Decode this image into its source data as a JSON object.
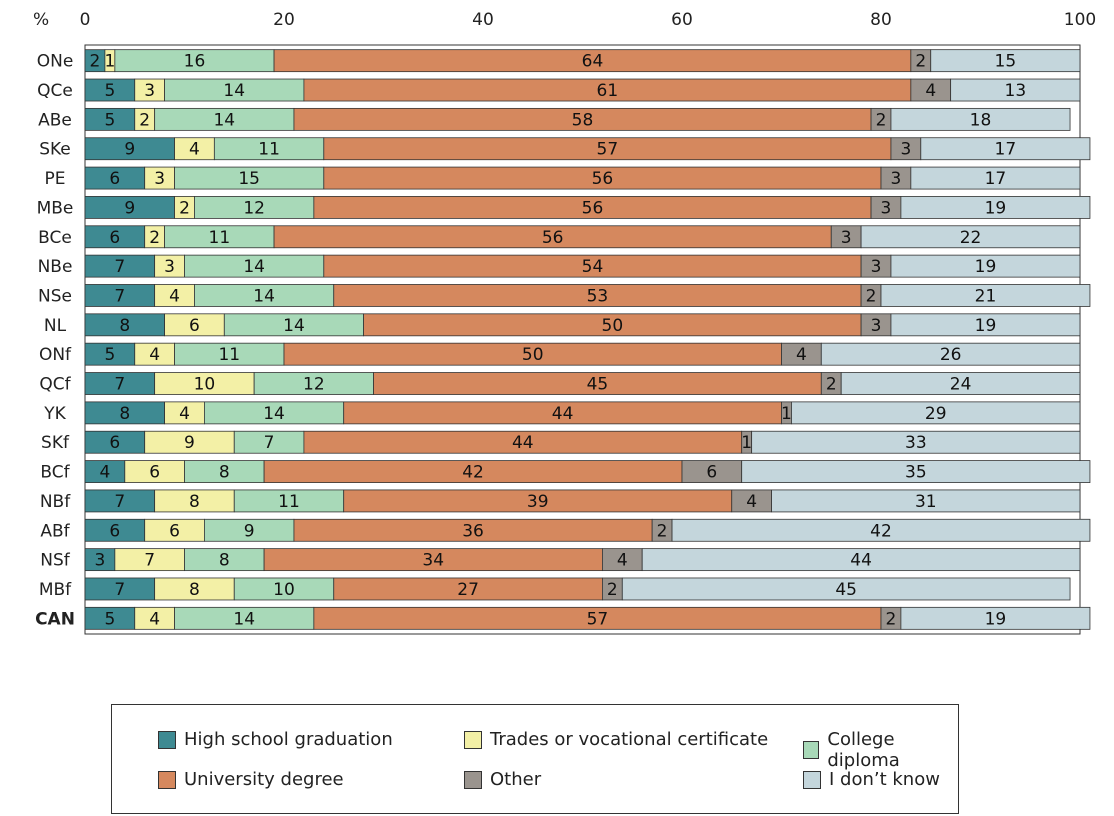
{
  "chart_data": {
    "type": "bar",
    "orientation": "horizontal",
    "stacked": true,
    "axis_unit_label": "%",
    "xlim": [
      0,
      100
    ],
    "xticks": [
      0,
      20,
      40,
      60,
      80,
      100
    ],
    "grid": false,
    "legend_placement": "bottom",
    "categories": [
      "ONe",
      "QCe",
      "ABe",
      "SKe",
      "PE",
      "MBe",
      "BCe",
      "NBe",
      "NSe",
      "NL",
      "ONf",
      "QCf",
      "YK",
      "SKf",
      "BCf",
      "NBf",
      "ABf",
      "NSf",
      "MBf",
      "CAN"
    ],
    "bold_categories": [
      "CAN"
    ],
    "series": [
      {
        "name": "High school graduation",
        "color": "#3e8a92",
        "values": [
          2,
          5,
          5,
          9,
          6,
          9,
          6,
          7,
          7,
          8,
          5,
          7,
          8,
          6,
          4,
          7,
          6,
          3,
          7,
          5
        ]
      },
      {
        "name": "Trades or vocational certificate",
        "color": "#f3f0a6",
        "values": [
          1,
          3,
          2,
          4,
          3,
          2,
          2,
          3,
          4,
          6,
          4,
          10,
          4,
          9,
          6,
          8,
          6,
          7,
          8,
          4
        ]
      },
      {
        "name": "College diploma",
        "color": "#a8d9b8",
        "values": [
          16,
          14,
          14,
          11,
          15,
          12,
          11,
          14,
          14,
          14,
          11,
          12,
          14,
          7,
          8,
          11,
          9,
          8,
          10,
          14
        ]
      },
      {
        "name": "University degree",
        "color": "#d5885e",
        "values": [
          64,
          61,
          58,
          57,
          56,
          56,
          56,
          54,
          53,
          50,
          50,
          45,
          44,
          44,
          42,
          39,
          36,
          34,
          27,
          57
        ]
      },
      {
        "name": "Other",
        "color": "#9a948e",
        "values": [
          2,
          4,
          2,
          3,
          3,
          3,
          3,
          3,
          2,
          3,
          4,
          2,
          1,
          1,
          6,
          4,
          2,
          4,
          2,
          2
        ]
      },
      {
        "name": "I don’t know",
        "color": "#c4d6dc",
        "values": [
          15,
          13,
          18,
          17,
          17,
          19,
          22,
          19,
          21,
          19,
          26,
          24,
          29,
          33,
          35,
          31,
          42,
          44,
          45,
          19
        ]
      }
    ]
  }
}
